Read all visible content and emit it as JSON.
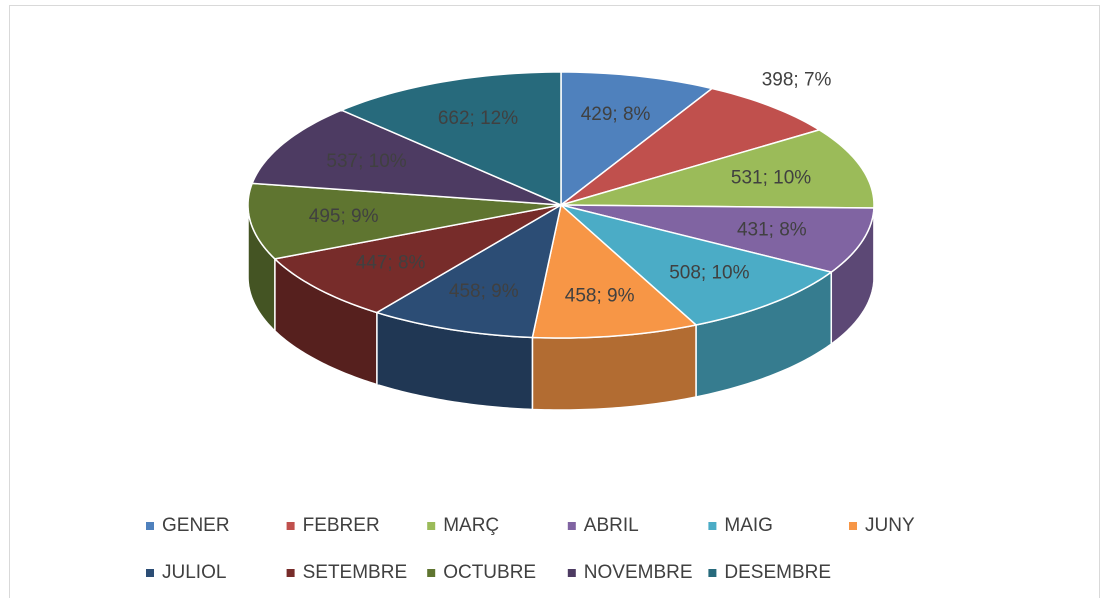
{
  "chart_data": {
    "type": "pie3d",
    "categories": [
      "GENER",
      "FEBRER",
      "MARÇ",
      "ABRIL",
      "MAIG",
      "JUNY",
      "JULIOL",
      "SETEMBRE",
      "OCTUBRE",
      "NOVEMBRE",
      "DESEMBRE"
    ],
    "values": [
      429,
      398,
      531,
      431,
      508,
      458,
      458,
      447,
      495,
      537,
      662
    ],
    "value_labels": [
      "429; 8%",
      "398; 7%",
      "531; 10%",
      "431; 8%",
      "508; 10%",
      "458; 9%",
      "458; 9%",
      "447; 8%",
      "495; 9%",
      "537; 10%",
      "662; 12%"
    ],
    "colors": [
      "#4f81bd",
      "#c0504d",
      "#9bbb59",
      "#8064a2",
      "#4bacc6",
      "#f79646",
      "#2c4d75",
      "#772c2a",
      "#5f7530",
      "#4d3b62",
      "#276a7c"
    ],
    "legend": "bottom"
  }
}
